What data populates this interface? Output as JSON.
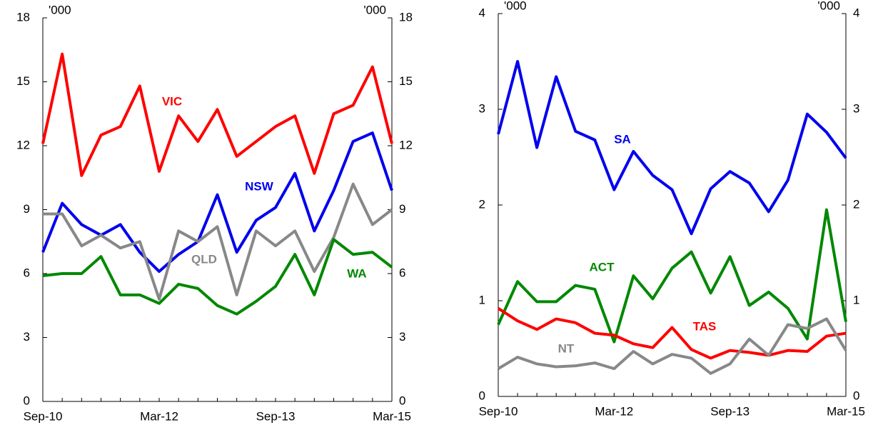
{
  "chart_data": [
    {
      "type": "line",
      "unit_label": "'000",
      "categories": [
        "Sep-10",
        null,
        null,
        null,
        null,
        null,
        "Mar-12",
        null,
        null,
        null,
        null,
        null,
        "Sep-13",
        null,
        null,
        null,
        null,
        null,
        "Mar-15"
      ],
      "ylim": [
        0,
        18
      ],
      "yticks": [
        0,
        3,
        6,
        9,
        12,
        15,
        18
      ],
      "series": [
        {
          "name": "VIC",
          "color": "#ff0000",
          "values": [
            12.1,
            16.3,
            10.6,
            12.5,
            12.9,
            14.8,
            10.8,
            13.4,
            12.2,
            13.7,
            11.5,
            12.2,
            12.9,
            13.4,
            10.7,
            13.5,
            13.9,
            15.7,
            12.1
          ]
        },
        {
          "name": "NSW",
          "color": "#0000ee",
          "values": [
            7.0,
            9.3,
            8.3,
            7.8,
            8.3,
            7.0,
            6.1,
            6.9,
            7.5,
            9.7,
            7.0,
            8.5,
            9.1,
            10.7,
            8.0,
            9.9,
            12.2,
            12.6,
            9.9
          ]
        },
        {
          "name": "QLD",
          "color": "#888888",
          "values": [
            8.8,
            8.8,
            7.3,
            7.8,
            7.2,
            7.5,
            4.8,
            8.0,
            7.5,
            8.2,
            5.0,
            8.0,
            7.3,
            8.0,
            6.1,
            7.7,
            10.2,
            8.3,
            9.0
          ]
        },
        {
          "name": "WA",
          "color": "#008800",
          "values": [
            5.9,
            6.0,
            6.0,
            6.8,
            5.0,
            5.0,
            4.6,
            5.5,
            5.3,
            4.5,
            4.1,
            4.7,
            5.4,
            6.9,
            5.0,
            7.6,
            6.9,
            7.0,
            6.3
          ]
        }
      ]
    },
    {
      "type": "line",
      "unit_label": "'000",
      "categories": [
        "Sep-10",
        null,
        null,
        null,
        null,
        null,
        "Mar-12",
        null,
        null,
        null,
        null,
        null,
        "Sep-13",
        null,
        null,
        null,
        null,
        null,
        "Mar-15"
      ],
      "ylim": [
        0,
        4
      ],
      "yticks": [
        0,
        1,
        2,
        3,
        4
      ],
      "series": [
        {
          "name": "SA",
          "color": "#0000ee",
          "values": [
            2.74,
            3.5,
            2.6,
            3.34,
            2.77,
            2.68,
            2.16,
            2.56,
            2.31,
            2.16,
            1.7,
            2.17,
            2.35,
            2.23,
            1.93,
            2.26,
            2.95,
            2.76,
            2.49
          ]
        },
        {
          "name": "ACT",
          "color": "#008800",
          "values": [
            0.75,
            1.2,
            0.99,
            0.99,
            1.16,
            1.12,
            0.57,
            1.26,
            1.02,
            1.34,
            1.51,
            1.08,
            1.46,
            0.95,
            1.09,
            0.92,
            0.6,
            1.95,
            0.78
          ]
        },
        {
          "name": "TAS",
          "color": "#ff0000",
          "values": [
            0.92,
            0.79,
            0.7,
            0.81,
            0.77,
            0.66,
            0.64,
            0.55,
            0.51,
            0.72,
            0.49,
            0.4,
            0.48,
            0.46,
            0.43,
            0.48,
            0.47,
            0.63,
            0.66
          ]
        },
        {
          "name": "NT",
          "color": "#888888",
          "values": [
            0.29,
            0.41,
            0.34,
            0.31,
            0.32,
            0.35,
            0.29,
            0.47,
            0.34,
            0.44,
            0.4,
            0.24,
            0.34,
            0.6,
            0.43,
            0.75,
            0.71,
            0.81,
            0.48
          ]
        }
      ]
    }
  ]
}
